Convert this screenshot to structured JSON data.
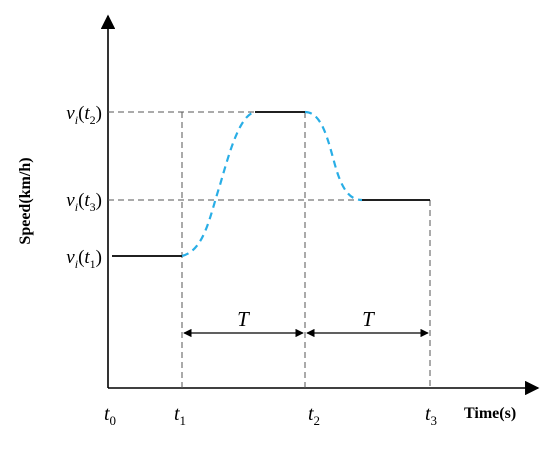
{
  "axes": {
    "y_label": "Speed(km/h)",
    "x_label": "Time(s)"
  },
  "y_ticks": [
    {
      "key": "t2",
      "var": "v",
      "sub": "i",
      "arg": "t",
      "arg_sub": "2"
    },
    {
      "key": "t3",
      "var": "v",
      "sub": "i",
      "arg": "t",
      "arg_sub": "3"
    },
    {
      "key": "t1",
      "var": "v",
      "sub": "i",
      "arg": "t",
      "arg_sub": "1"
    }
  ],
  "x_ticks": [
    {
      "key": "t0",
      "var": "t",
      "sub": "0"
    },
    {
      "key": "t1",
      "var": "t",
      "sub": "1"
    },
    {
      "key": "t2",
      "var": "t",
      "sub": "2"
    },
    {
      "key": "t3",
      "var": "t",
      "sub": "3"
    }
  ],
  "intervals": [
    {
      "key": "first",
      "label": "T"
    },
    {
      "key": "second",
      "label": "T"
    }
  ],
  "colors": {
    "axis": "#000000",
    "guide": "#555555",
    "speed_line": "#000000",
    "transition": "#29aee6"
  }
}
